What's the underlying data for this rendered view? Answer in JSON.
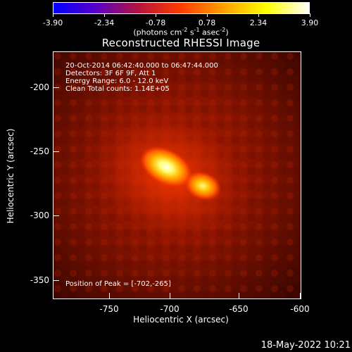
{
  "colorbar": {
    "ticks": [
      "-3.90",
      "-2.34",
      "-0.78",
      "0.78",
      "2.34",
      "3.90"
    ],
    "colors": [
      "#0000ff",
      "#5a00c8",
      "#b4143c",
      "#ff3c00",
      "#ffa000",
      "#ffff00",
      "#ffffff"
    ]
  },
  "unit_prefix": "(photons cm",
  "unit_exp1": "-2",
  "unit_mid": " s",
  "unit_exp2": "-1",
  "unit_mid2": " asec",
  "unit_exp3": "-2",
  "unit_suffix": ")",
  "title": "Reconstructed RHESSI Image",
  "info": {
    "line1": "20-Oct-2014 06:42:40.000 to 06:47:44.000",
    "line2": "Detectors: 3F 6F 9F, Att 1",
    "line3": "Energy Range: 6.0 - 12.0 keV",
    "line4": "Clean    Total counts: 1.14E+05",
    "peak": "Position of Peak = [-702,-265]"
  },
  "x_axis": {
    "label": "Heliocentric X (arcsec)",
    "ticks": [
      "-750",
      "-700",
      "-650",
      "-600"
    ]
  },
  "y_axis": {
    "label": "Heliocentric Y (arcsec)",
    "ticks": [
      "-200",
      "-250",
      "-300",
      "-350"
    ]
  },
  "timestamp": "18-May-2022 10:21"
}
